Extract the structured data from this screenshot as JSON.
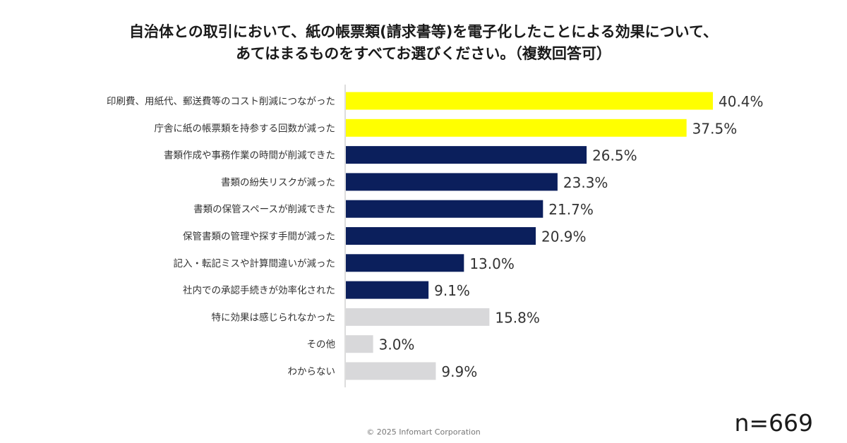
{
  "title": {
    "line1": "自治体との取引において、紙の帳票類(請求書等)を電子化したことによる効果について、",
    "line2": "あてはまるものをすべてお選びください。（複数回答可）"
  },
  "chart_data": {
    "type": "bar",
    "orientation": "horizontal",
    "categories": [
      "印刷費、用紙代、郵送費等のコスト削減につながった",
      "庁舎に紙の帳票類を持参する回数が減った",
      "書類作成や事務作業の時間が削減できた",
      "書類の紛失リスクが減った",
      "書類の保管スペースが削減できた",
      "保管書類の管理や探す手間が減った",
      "記入・転記ミスや計算間違いが減った",
      "社内での承認手続きが効率化された",
      "特に効果は感じられなかった",
      "その他",
      "わからない"
    ],
    "values": [
      40.4,
      37.5,
      26.5,
      23.3,
      21.7,
      20.9,
      13.0,
      9.1,
      15.8,
      3.0,
      9.9
    ],
    "value_labels": [
      "40.4%",
      "37.5%",
      "26.5%",
      "23.3%",
      "21.7%",
      "20.9%",
      "13.0%",
      "9.1%",
      "15.8%",
      "3.0%",
      "9.9%"
    ],
    "unit": "%",
    "bar_colors": [
      "#ffff00",
      "#ffff00",
      "#0b1f5c",
      "#0b1f5c",
      "#0b1f5c",
      "#0b1f5c",
      "#0b1f5c",
      "#0b1f5c",
      "#d8d8da",
      "#d8d8da",
      "#d8d8da"
    ],
    "xlim": [
      0,
      40.4
    ],
    "grid": false,
    "legend": "none"
  },
  "sample_size": "n=669",
  "footer": "© 2025 Infomart Corporation"
}
